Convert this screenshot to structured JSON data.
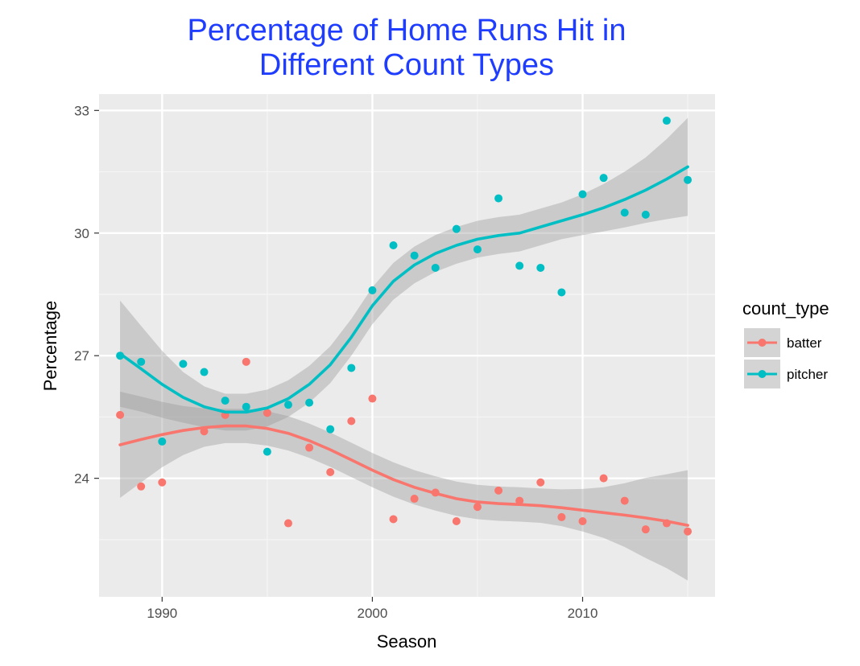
{
  "chart_data": {
    "type": "scatter",
    "title_lines": [
      "Percentage of Home Runs Hit in",
      "Different Count Types"
    ],
    "xlabel": "Season",
    "ylabel": "Percentage",
    "xlim": [
      1987,
      2016.3
    ],
    "ylim": [
      21.1,
      33.4
    ],
    "x_ticks": [
      1990,
      2000,
      2010
    ],
    "x_minor": [
      1985,
      1995,
      2005,
      2015
    ],
    "y_ticks": [
      24,
      27,
      30,
      33
    ],
    "y_minor": [
      22.5,
      25.5,
      28.5,
      31.5
    ],
    "grid": true,
    "legend": {
      "title": "count_type",
      "position": "right"
    },
    "smoother": "loess with confidence band",
    "series": [
      {
        "name": "batter",
        "color": "#f8766d",
        "points": [
          [
            1988,
            25.55
          ],
          [
            1989,
            23.8
          ],
          [
            1990,
            23.9
          ],
          [
            1992,
            25.15
          ],
          [
            1993,
            25.55
          ],
          [
            1994,
            26.85
          ],
          [
            1995,
            25.6
          ],
          [
            1996,
            22.9
          ],
          [
            1997,
            24.75
          ],
          [
            1998,
            24.15
          ],
          [
            1999,
            25.4
          ],
          [
            2000,
            25.95
          ],
          [
            2001,
            23.0
          ],
          [
            2002,
            23.5
          ],
          [
            2003,
            23.65
          ],
          [
            2004,
            22.95
          ],
          [
            2005,
            23.3
          ],
          [
            2006,
            23.7
          ],
          [
            2007,
            23.45
          ],
          [
            2008,
            23.9
          ],
          [
            2009,
            23.05
          ],
          [
            2010,
            22.95
          ],
          [
            2011,
            24.0
          ],
          [
            2012,
            23.45
          ],
          [
            2013,
            22.75
          ],
          [
            2014,
            22.9
          ],
          [
            2015,
            22.7
          ]
        ],
        "fit": [
          [
            1988,
            24.82
          ],
          [
            1989,
            24.95
          ],
          [
            1990,
            25.07
          ],
          [
            1991,
            25.17
          ],
          [
            1992,
            25.24
          ],
          [
            1993,
            25.28
          ],
          [
            1994,
            25.28
          ],
          [
            1995,
            25.22
          ],
          [
            1996,
            25.1
          ],
          [
            1997,
            24.92
          ],
          [
            1998,
            24.7
          ],
          [
            1999,
            24.45
          ],
          [
            2000,
            24.2
          ],
          [
            2001,
            23.97
          ],
          [
            2002,
            23.78
          ],
          [
            2003,
            23.63
          ],
          [
            2004,
            23.5
          ],
          [
            2005,
            23.42
          ],
          [
            2006,
            23.38
          ],
          [
            2007,
            23.36
          ],
          [
            2008,
            23.33
          ],
          [
            2009,
            23.28
          ],
          [
            2010,
            23.22
          ],
          [
            2011,
            23.16
          ],
          [
            2012,
            23.1
          ],
          [
            2013,
            23.03
          ],
          [
            2014,
            22.95
          ],
          [
            2015,
            22.85
          ]
        ],
        "band_halfwidth": [
          1.3,
          1.05,
          0.8,
          0.6,
          0.47,
          0.42,
          0.42,
          0.42,
          0.42,
          0.42,
          0.42,
          0.42,
          0.42,
          0.42,
          0.42,
          0.42,
          0.42,
          0.42,
          0.42,
          0.42,
          0.42,
          0.45,
          0.52,
          0.62,
          0.78,
          0.98,
          1.15,
          1.35
        ]
      },
      {
        "name": "pitcher",
        "color": "#00bfc4",
        "points": [
          [
            1988,
            27.0
          ],
          [
            1989,
            26.85
          ],
          [
            1990,
            24.9
          ],
          [
            1991,
            26.8
          ],
          [
            1992,
            26.6
          ],
          [
            1993,
            25.9
          ],
          [
            1994,
            25.75
          ],
          [
            1995,
            24.65
          ],
          [
            1996,
            25.8
          ],
          [
            1997,
            25.85
          ],
          [
            1998,
            25.2
          ],
          [
            1999,
            26.7
          ],
          [
            2000,
            28.6
          ],
          [
            2001,
            29.7
          ],
          [
            2002,
            29.45
          ],
          [
            2003,
            29.15
          ],
          [
            2004,
            30.1
          ],
          [
            2005,
            29.6
          ],
          [
            2006,
            30.85
          ],
          [
            2007,
            29.2
          ],
          [
            2008,
            29.15
          ],
          [
            2009,
            28.55
          ],
          [
            2010,
            30.95
          ],
          [
            2011,
            31.35
          ],
          [
            2012,
            30.5
          ],
          [
            2013,
            30.45
          ],
          [
            2014,
            32.75
          ],
          [
            2015,
            31.3
          ]
        ],
        "fit": [
          [
            1988,
            27.05
          ],
          [
            1989,
            26.68
          ],
          [
            1990,
            26.3
          ],
          [
            1991,
            25.98
          ],
          [
            1992,
            25.75
          ],
          [
            1993,
            25.62
          ],
          [
            1994,
            25.62
          ],
          [
            1995,
            25.72
          ],
          [
            1996,
            25.95
          ],
          [
            1997,
            26.3
          ],
          [
            1998,
            26.78
          ],
          [
            1999,
            27.45
          ],
          [
            2000,
            28.22
          ],
          [
            2001,
            28.82
          ],
          [
            2002,
            29.22
          ],
          [
            2003,
            29.5
          ],
          [
            2004,
            29.7
          ],
          [
            2005,
            29.85
          ],
          [
            2006,
            29.94
          ],
          [
            2007,
            30.0
          ],
          [
            2008,
            30.15
          ],
          [
            2009,
            30.3
          ],
          [
            2010,
            30.45
          ],
          [
            2011,
            30.62
          ],
          [
            2012,
            30.82
          ],
          [
            2013,
            31.05
          ],
          [
            2014,
            31.32
          ],
          [
            2015,
            31.62
          ]
        ],
        "band_halfwidth": [
          1.3,
          1.05,
          0.82,
          0.62,
          0.5,
          0.45,
          0.45,
          0.45,
          0.45,
          0.45,
          0.45,
          0.45,
          0.45,
          0.45,
          0.45,
          0.45,
          0.45,
          0.45,
          0.45,
          0.45,
          0.45,
          0.45,
          0.5,
          0.58,
          0.68,
          0.8,
          0.98,
          1.2
        ]
      }
    ]
  }
}
